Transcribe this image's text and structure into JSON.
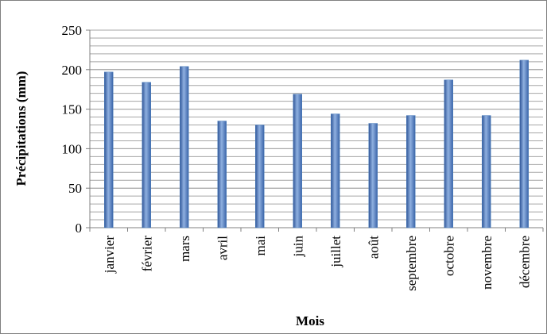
{
  "chart_data": {
    "type": "bar",
    "x_label": "Mois",
    "y_label": "Précipitations (mm)",
    "categories": [
      "janvier",
      "février",
      "mars",
      "avril",
      "mai",
      "juin",
      "juillet",
      "août",
      "septembre",
      "octobre",
      "novembre",
      "décembre"
    ],
    "values": [
      197,
      184,
      204,
      135,
      130,
      169,
      144,
      132,
      142,
      187,
      142,
      212
    ],
    "color": "#4f81bd",
    "ylim": [
      0,
      250
    ],
    "yticks": [
      0,
      50,
      100,
      150,
      200,
      250
    ],
    "grid": true,
    "minor_grid_step": 10
  }
}
